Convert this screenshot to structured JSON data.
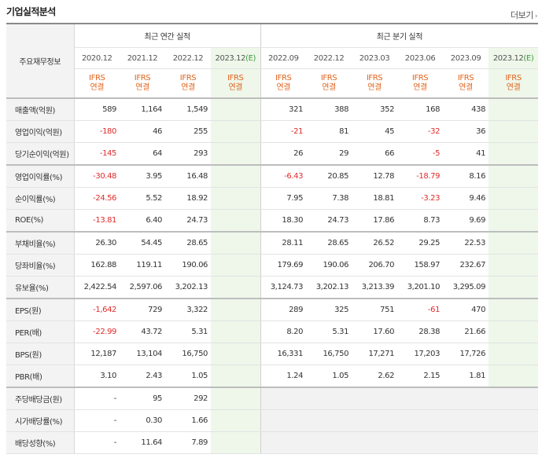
{
  "page": {
    "title": "기업실적분석",
    "more_label": "더보기",
    "more_icon": "chevron-right-icon"
  },
  "table": {
    "corner_label": "주요재무정보",
    "annual_group_label": "최근 연간 실적",
    "quarter_group_label": "최근 분기 실적",
    "annual_periods": [
      "2020.12",
      "2021.12",
      "2022.12",
      "2023.12"
    ],
    "annual_estimate_suffix": "(E)",
    "quarter_periods": [
      "2022.09",
      "2022.12",
      "2023.03",
      "2023.06",
      "2023.09",
      "2023.12"
    ],
    "quarter_estimate_suffix": "(E)",
    "ifrs_line1": "IFRS",
    "ifrs_line2": "연결",
    "rows": [
      {
        "label": "매출액(억원)",
        "annual": [
          "589",
          "1,164",
          "1,549",
          ""
        ],
        "quarter": [
          "321",
          "388",
          "352",
          "168",
          "438",
          ""
        ]
      },
      {
        "label": "영업이익(억원)",
        "annual": [
          "-180",
          "46",
          "255",
          ""
        ],
        "quarter": [
          "-21",
          "81",
          "45",
          "-32",
          "36",
          ""
        ]
      },
      {
        "label": "당기순이익(억원)",
        "annual": [
          "-145",
          "64",
          "293",
          ""
        ],
        "quarter": [
          "26",
          "29",
          "66",
          "-5",
          "41",
          ""
        ]
      },
      {
        "label": "영업이익률(%)",
        "annual": [
          "-30.48",
          "3.95",
          "16.48",
          ""
        ],
        "quarter": [
          "-6.43",
          "20.85",
          "12.78",
          "-18.79",
          "8.16",
          ""
        ]
      },
      {
        "label": "순이익률(%)",
        "annual": [
          "-24.56",
          "5.52",
          "18.92",
          ""
        ],
        "quarter": [
          "7.95",
          "7.38",
          "18.81",
          "-3.23",
          "9.46",
          ""
        ]
      },
      {
        "label": "ROE(%)",
        "annual": [
          "-13.81",
          "6.40",
          "24.73",
          ""
        ],
        "quarter": [
          "18.30",
          "24.73",
          "17.86",
          "8.73",
          "9.69",
          ""
        ]
      },
      {
        "label": "부채비율(%)",
        "annual": [
          "26.30",
          "54.45",
          "28.65",
          ""
        ],
        "quarter": [
          "28.11",
          "28.65",
          "26.52",
          "29.25",
          "22.53",
          ""
        ]
      },
      {
        "label": "당좌비율(%)",
        "annual": [
          "162.88",
          "119.11",
          "190.06",
          ""
        ],
        "quarter": [
          "179.69",
          "190.06",
          "206.70",
          "158.97",
          "232.67",
          ""
        ]
      },
      {
        "label": "유보율(%)",
        "annual": [
          "2,422.54",
          "2,597.06",
          "3,202.13",
          ""
        ],
        "quarter": [
          "3,124.73",
          "3,202.13",
          "3,213.39",
          "3,201.10",
          "3,295.09",
          ""
        ]
      },
      {
        "label": "EPS(원)",
        "annual": [
          "-1,642",
          "729",
          "3,322",
          ""
        ],
        "quarter": [
          "289",
          "325",
          "751",
          "-61",
          "470",
          ""
        ]
      },
      {
        "label": "PER(배)",
        "annual": [
          "-22.99",
          "43.72",
          "5.31",
          ""
        ],
        "quarter": [
          "8.20",
          "5.31",
          "17.60",
          "28.38",
          "21.66",
          ""
        ]
      },
      {
        "label": "BPS(원)",
        "annual": [
          "12,187",
          "13,104",
          "16,750",
          ""
        ],
        "quarter": [
          "16,331",
          "16,750",
          "17,271",
          "17,203",
          "17,726",
          ""
        ]
      },
      {
        "label": "PBR(배)",
        "annual": [
          "3.10",
          "2.43",
          "1.05",
          ""
        ],
        "quarter": [
          "1.24",
          "1.05",
          "2.62",
          "2.15",
          "1.81",
          ""
        ]
      },
      {
        "label": "주당배당금(원)",
        "annual": [
          "-",
          "95",
          "292",
          ""
        ],
        "quarter": null
      },
      {
        "label": "시가배당률(%)",
        "annual": [
          "-",
          "0.30",
          "1.66",
          ""
        ],
        "quarter": null
      },
      {
        "label": "배당성향(%)",
        "annual": [
          "-",
          "11.64",
          "7.89",
          ""
        ],
        "quarter": null
      }
    ]
  },
  "colors": {
    "negative": "#e02b2b",
    "ifrs": "#e0641e",
    "estimate_bg": "#eef7ea",
    "estimate_mark": "#3d9a3d"
  }
}
